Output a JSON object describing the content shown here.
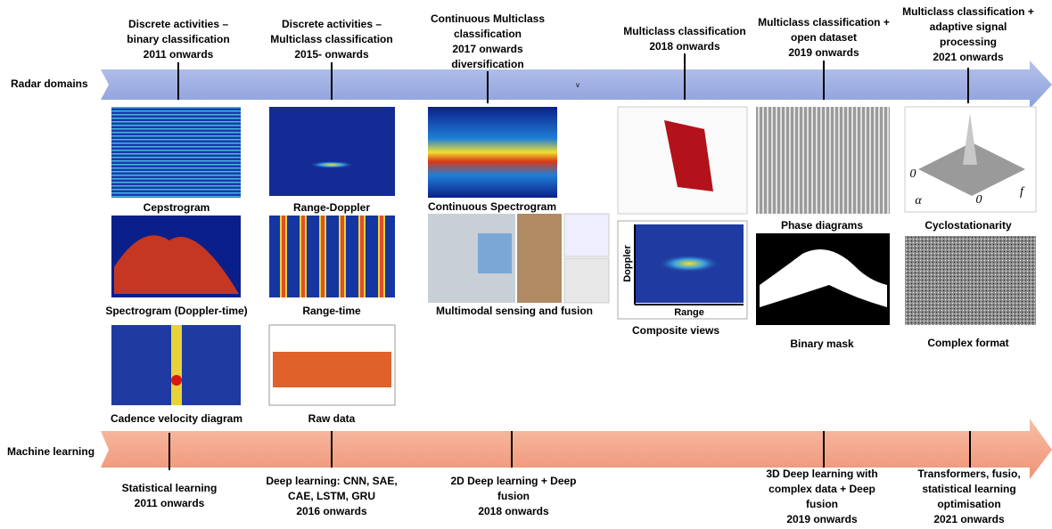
{
  "radar_domains": {
    "label": "Radar domains",
    "note": "v",
    "milestones": [
      [
        "Discrete activities –",
        "binary classification",
        "2011 onwards"
      ],
      [
        "Discrete activities –",
        "Multiclass classification",
        "2015- onwards"
      ],
      [
        "Continuous Multiclass",
        "classification",
        "2017 onwards",
        "diversification"
      ],
      [
        "Multiclass classification",
        "2018 onwards"
      ],
      [
        "Multiclass classification +",
        "open dataset",
        "2019 onwards"
      ],
      [
        "Multiclass classification +",
        "adaptive signal",
        "processing",
        "2021 onwards"
      ]
    ]
  },
  "representations": [
    "Cepstrogram",
    "Spectrogram (Doppler-time)",
    "Cadence velocity diagram",
    "Range-Doppler",
    "Range-time",
    "Raw data",
    "Continuous Spectrogram",
    "Multimodal sensing and fusion",
    "Composite views",
    "Phase diagrams",
    "Binary mask",
    "Cyclostationarity",
    "Complex format"
  ],
  "image_labels": {
    "doppler": "Doppler",
    "range": "Range",
    "cyclostationarity": [
      "0",
      "0",
      "α",
      "f"
    ]
  },
  "machine_learning": {
    "label": "Machine learning",
    "milestones": [
      [
        "Statistical learning",
        "2011 onwards"
      ],
      [
        "Deep learning: CNN, SAE,",
        "CAE, LSTM, GRU",
        "2016 onwards"
      ],
      [
        "2D Deep learning + Deep",
        "fusion",
        "2018 onwards"
      ],
      [
        "3D Deep learning with",
        "complex data + Deep",
        "fusion",
        "2019 onwards"
      ],
      [
        "Transformers, fusio,",
        "statistical learning",
        "optimisation",
        "2021 onwards"
      ]
    ]
  }
}
